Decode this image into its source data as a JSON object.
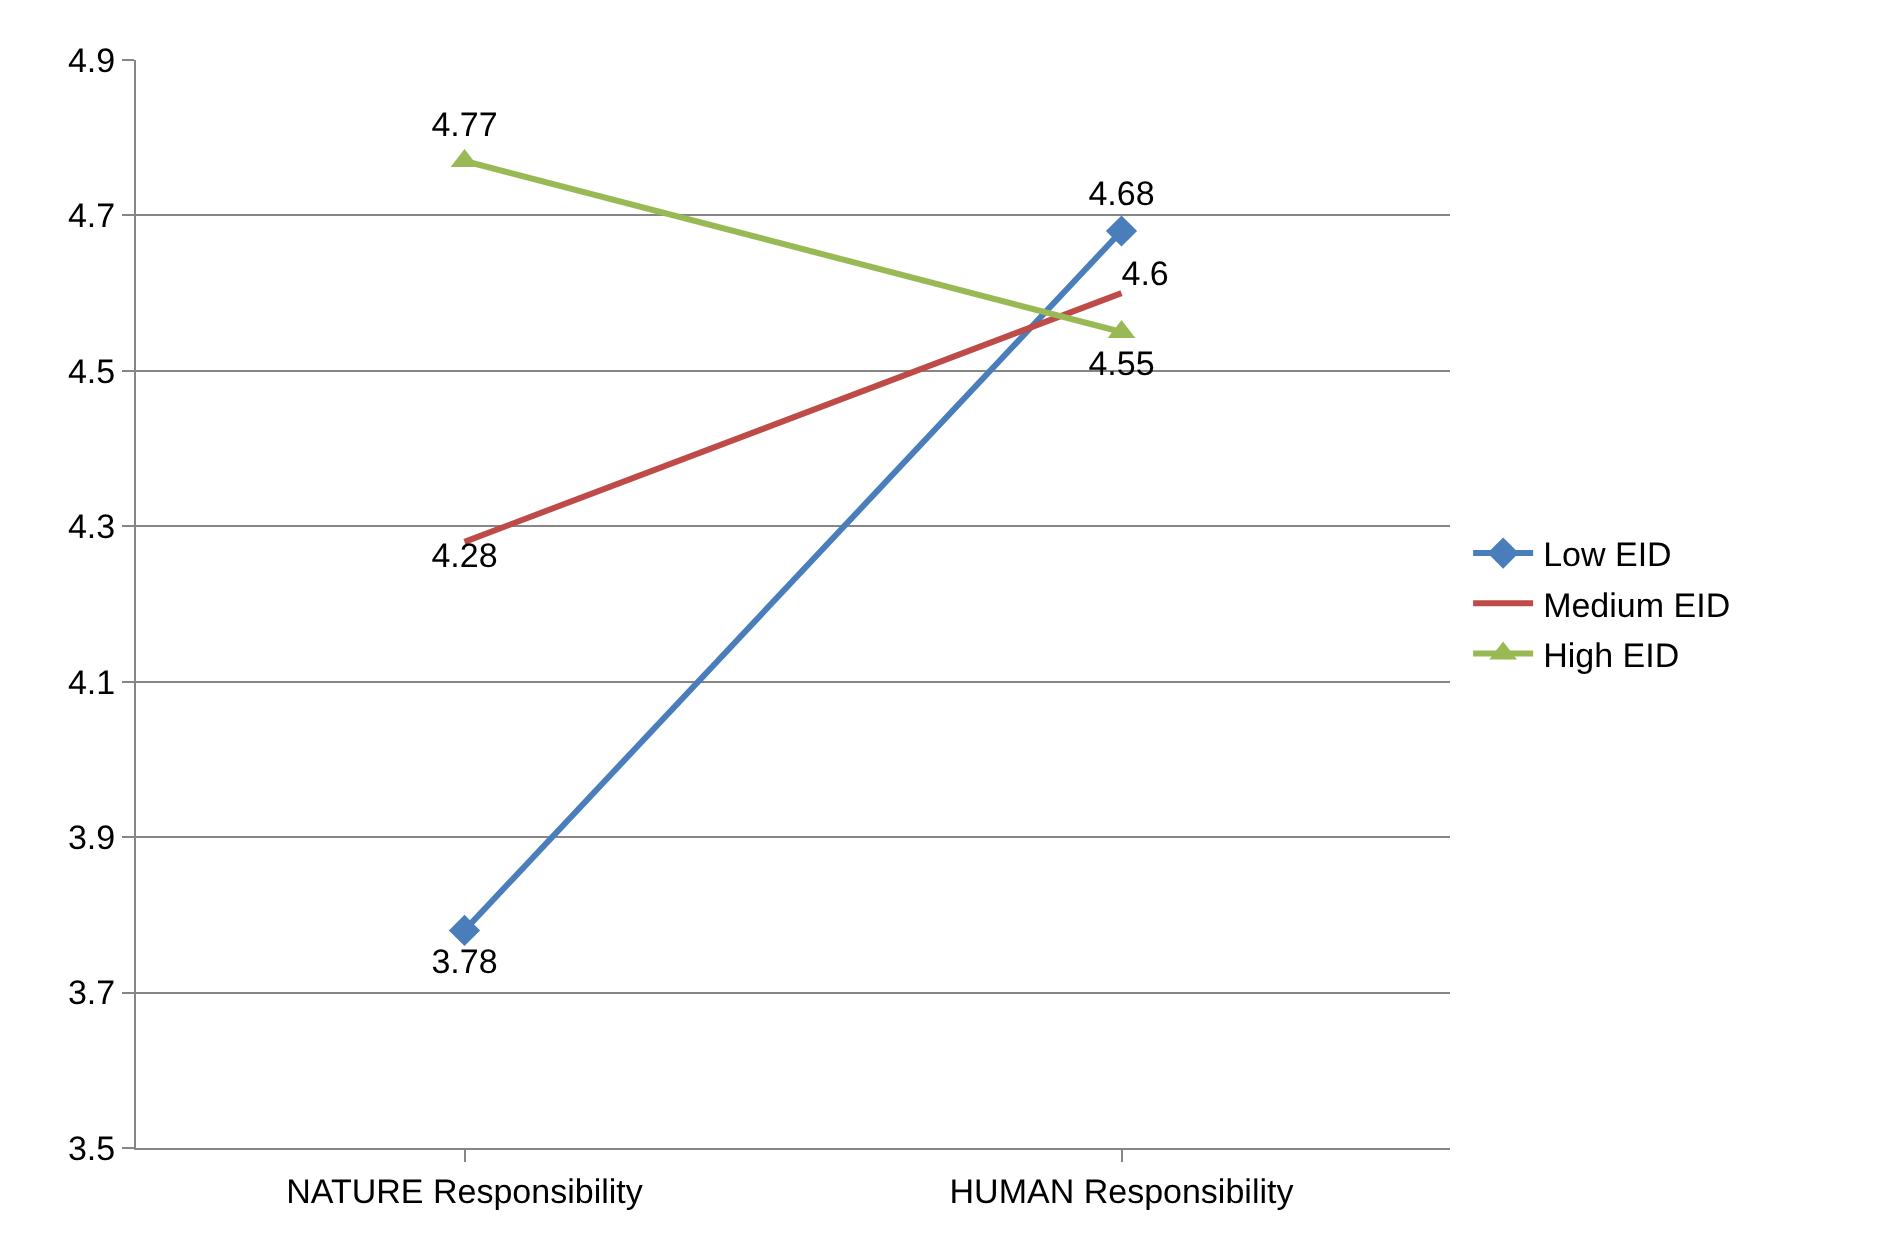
{
  "chart_data": {
    "type": "line",
    "categories": [
      "NATURE Responsibility",
      "HUMAN Responsibility"
    ],
    "series": [
      {
        "name": "Low EID",
        "color": "#4a7ebb",
        "values": [
          3.78,
          4.68
        ],
        "marker": "diamond"
      },
      {
        "name": "Medium EID",
        "color": "#be4b48",
        "values": [
          4.28,
          4.6
        ],
        "marker": "none"
      },
      {
        "name": "High EID",
        "color": "#98b954",
        "values": [
          4.77,
          4.55
        ],
        "marker": "triangle"
      }
    ],
    "ylim": [
      3.5,
      4.9
    ],
    "yticks": [
      3.5,
      3.7,
      3.9,
      4.1,
      4.3,
      4.5,
      4.7,
      4.9
    ],
    "grid": "y",
    "legend": "right",
    "data_labels": true
  }
}
